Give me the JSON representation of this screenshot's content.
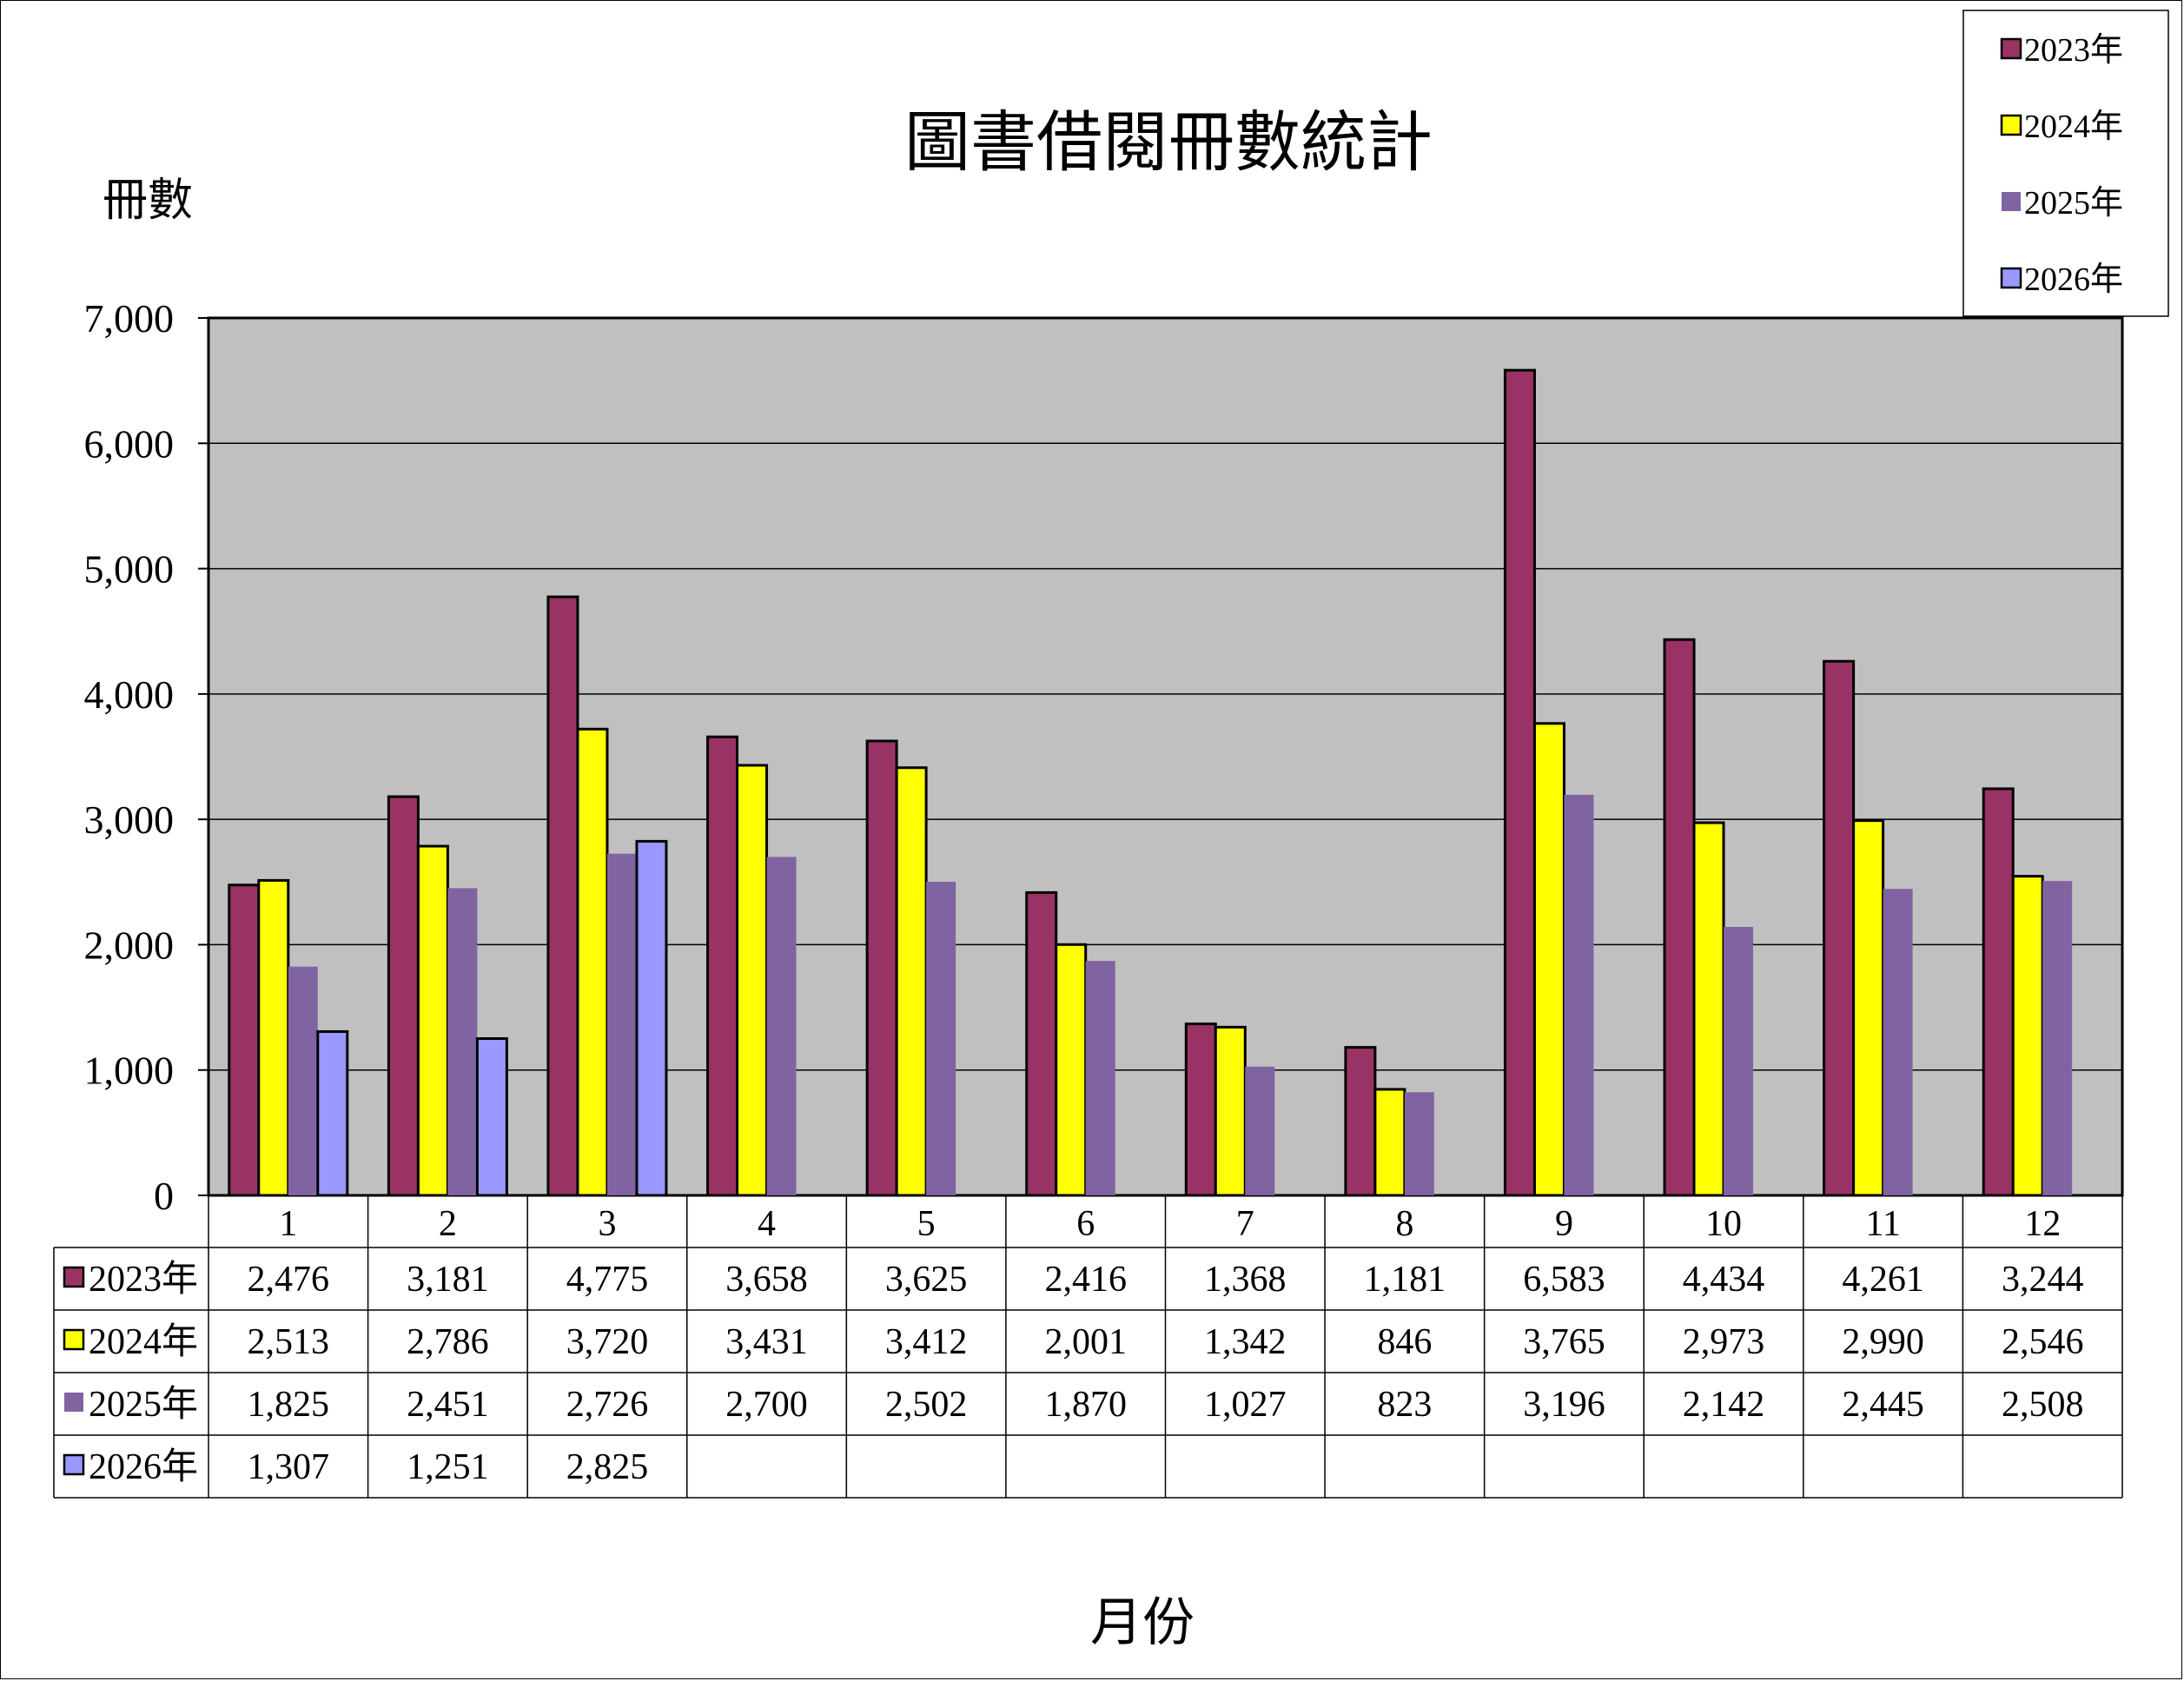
{
  "chart_data": {
    "type": "bar",
    "title": "圖書借閱冊數統計",
    "ylabel": "冊數",
    "xlabel": "月份",
    "ylim": [
      0,
      7000
    ],
    "yticks": [
      "0",
      "1,000",
      "2,000",
      "3,000",
      "4,000",
      "5,000",
      "6,000",
      "7,000"
    ],
    "grid": true,
    "legend_position": "top-right",
    "categories": [
      "1",
      "2",
      "3",
      "4",
      "5",
      "6",
      "7",
      "8",
      "9",
      "10",
      "11",
      "12"
    ],
    "series": [
      {
        "name": "2023年",
        "color": "#993366",
        "values": [
          2476,
          3181,
          4775,
          3658,
          3625,
          2416,
          1368,
          1181,
          6583,
          4434,
          4261,
          3244
        ],
        "labels": [
          "2,476",
          "3,181",
          "4,775",
          "3,658",
          "3,625",
          "2,416",
          "1,368",
          "1,181",
          "6,583",
          "4,434",
          "4,261",
          "3,244"
        ]
      },
      {
        "name": "2024年",
        "color": "#ffff00",
        "values": [
          2513,
          2786,
          3720,
          3431,
          3412,
          2001,
          1342,
          846,
          3765,
          2973,
          2990,
          2546
        ],
        "labels": [
          "2,513",
          "2,786",
          "3,720",
          "3,431",
          "3,412",
          "2,001",
          "1,342",
          "846",
          "3,765",
          "2,973",
          "2,990",
          "2,546"
        ]
      },
      {
        "name": "2025年",
        "color": "#8064a2",
        "values": [
          1825,
          2451,
          2726,
          2700,
          2502,
          1870,
          1027,
          823,
          3196,
          2142,
          2445,
          2508
        ],
        "labels": [
          "1,825",
          "2,451",
          "2,726",
          "2,700",
          "2,502",
          "1,870",
          "1,027",
          "823",
          "3,196",
          "2,142",
          "2,445",
          "2,508"
        ]
      },
      {
        "name": "2026年",
        "color": "#9999ff",
        "values": [
          1307,
          1251,
          2825,
          null,
          null,
          null,
          null,
          null,
          null,
          null,
          null,
          null
        ],
        "labels": [
          "1,307",
          "1,251",
          "2,825",
          "",
          "",
          "",
          "",
          "",
          "",
          "",
          "",
          ""
        ]
      }
    ],
    "plot_background": "#c0c0c0"
  }
}
